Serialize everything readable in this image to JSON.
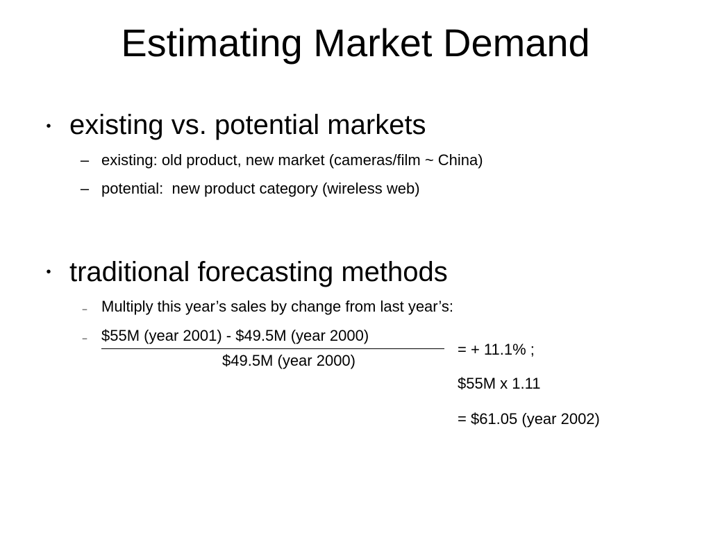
{
  "slide": {
    "title": "Estimating Market Demand",
    "sections": [
      {
        "bullet": "•",
        "heading": "existing vs. potential markets",
        "items": [
          {
            "marker": "–",
            "text": "existing: old product, new market (cameras/film ~ China)"
          },
          {
            "marker": "–",
            "text": "potential:  new product category (wireless web)"
          }
        ]
      },
      {
        "bullet": "•",
        "heading": "traditional forecasting methods",
        "items": [
          {
            "marker": "–",
            "text": "Multiply this year’s sales by change from last year’s:"
          },
          {
            "marker": "–",
            "text": "$55M (year 2001) - $49.5M (year 2000)"
          }
        ]
      }
    ],
    "formula": {
      "denominator": "$49.5M (year 2000)",
      "result_1": "= + 11.1% ;",
      "result_2": "$55M x 1.11",
      "result_3": "= $61.05 (year 2002)"
    }
  }
}
